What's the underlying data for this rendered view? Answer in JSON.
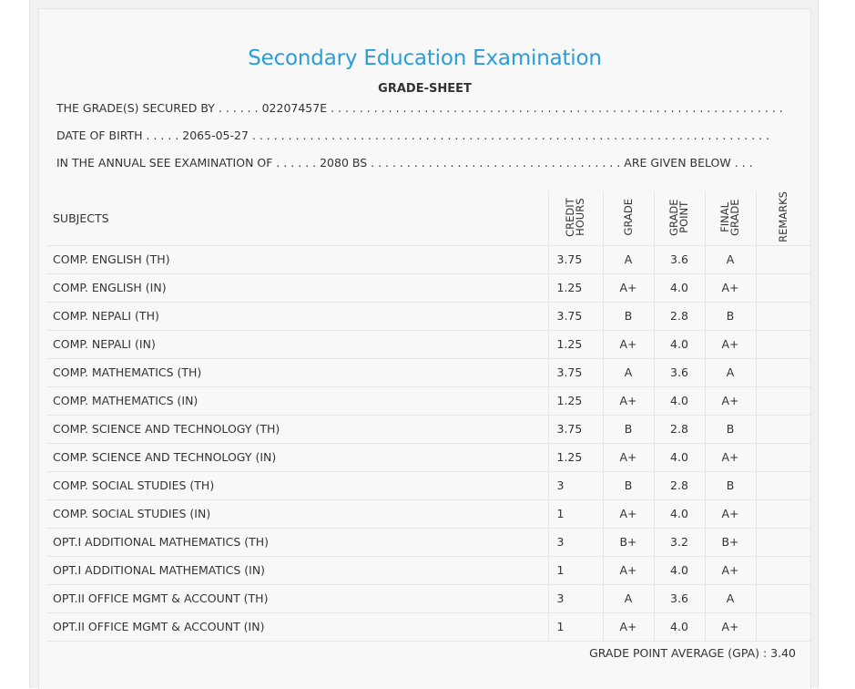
{
  "header": {
    "title": "Secondary Education Examination",
    "subtitle": "GRADE-SHEET"
  },
  "info": {
    "line1": "THE GRADE(S) SECURED BY . . . . . . 02207457E . . . . . . . . . . . . . . . . . . . . . . . . . . . . . . . . . . . . . . . . . . . . . . . . . . . . . . . . . . . . . . .",
    "line2": "DATE OF BIRTH . . . . . 2065-05-27 . . . . . . . . . . . . . . . . . . . . . . . . . . . . . . . . . . . . . . . . . . . . . . . . . . . . . . . . . . . . . . . . . . . . . . . .",
    "line3": "IN THE ANNUAL SEE EXAMINATION OF . . . . . . 2080 BS . . . . . . . . . . . . . . . . . . . . . . . . . . . . . . . . . . . ARE GIVEN BELOW . . ."
  },
  "table": {
    "headers": {
      "subjects": "SUBJECTS",
      "credit_hours": "CREDIT HOURS",
      "grade": "GRADE",
      "grade_point": "GRADE POINT",
      "final_grade": "FINAL GRADE",
      "remarks": "REMARKS"
    },
    "rows": [
      {
        "subject": "COMP. ENGLISH (TH)",
        "credit": "3.75",
        "grade": "A",
        "point": "3.6",
        "final": "A",
        "remarks": ""
      },
      {
        "subject": "COMP. ENGLISH (IN)",
        "credit": "1.25",
        "grade": "A+",
        "point": "4.0",
        "final": "A+",
        "remarks": ""
      },
      {
        "subject": "COMP. NEPALI (TH)",
        "credit": "3.75",
        "grade": "B",
        "point": "2.8",
        "final": "B",
        "remarks": ""
      },
      {
        "subject": "COMP. NEPALI (IN)",
        "credit": "1.25",
        "grade": "A+",
        "point": "4.0",
        "final": "A+",
        "remarks": ""
      },
      {
        "subject": "COMP. MATHEMATICS (TH)",
        "credit": "3.75",
        "grade": "A",
        "point": "3.6",
        "final": "A",
        "remarks": ""
      },
      {
        "subject": "COMP. MATHEMATICS (IN)",
        "credit": "1.25",
        "grade": "A+",
        "point": "4.0",
        "final": "A+",
        "remarks": ""
      },
      {
        "subject": "COMP. SCIENCE AND TECHNOLOGY (TH)",
        "credit": "3.75",
        "grade": "B",
        "point": "2.8",
        "final": "B",
        "remarks": ""
      },
      {
        "subject": "COMP. SCIENCE AND TECHNOLOGY (IN)",
        "credit": "1.25",
        "grade": "A+",
        "point": "4.0",
        "final": "A+",
        "remarks": ""
      },
      {
        "subject": "COMP. SOCIAL STUDIES (TH)",
        "credit": "3",
        "grade": "B",
        "point": "2.8",
        "final": "B",
        "remarks": ""
      },
      {
        "subject": "COMP. SOCIAL STUDIES (IN)",
        "credit": "1",
        "grade": "A+",
        "point": "4.0",
        "final": "A+",
        "remarks": ""
      },
      {
        "subject": "OPT.I ADDITIONAL MATHEMATICS (TH)",
        "credit": "3",
        "grade": "B+",
        "point": "3.2",
        "final": "B+",
        "remarks": ""
      },
      {
        "subject": "OPT.I ADDITIONAL MATHEMATICS (IN)",
        "credit": "1",
        "grade": "A+",
        "point": "4.0",
        "final": "A+",
        "remarks": ""
      },
      {
        "subject": "OPT.II OFFICE MGMT & ACCOUNT (TH)",
        "credit": "3",
        "grade": "A",
        "point": "3.6",
        "final": "A",
        "remarks": ""
      },
      {
        "subject": "OPT.II OFFICE MGMT & ACCOUNT (IN)",
        "credit": "1",
        "grade": "A+",
        "point": "4.0",
        "final": "A+",
        "remarks": ""
      }
    ]
  },
  "footer": {
    "gpa": "GRADE POINT AVERAGE (GPA) : 3.40"
  },
  "colors": {
    "title": "#2a9ddb",
    "sheet_background": "#f8f8f8",
    "rule": "#e6e6e6"
  }
}
